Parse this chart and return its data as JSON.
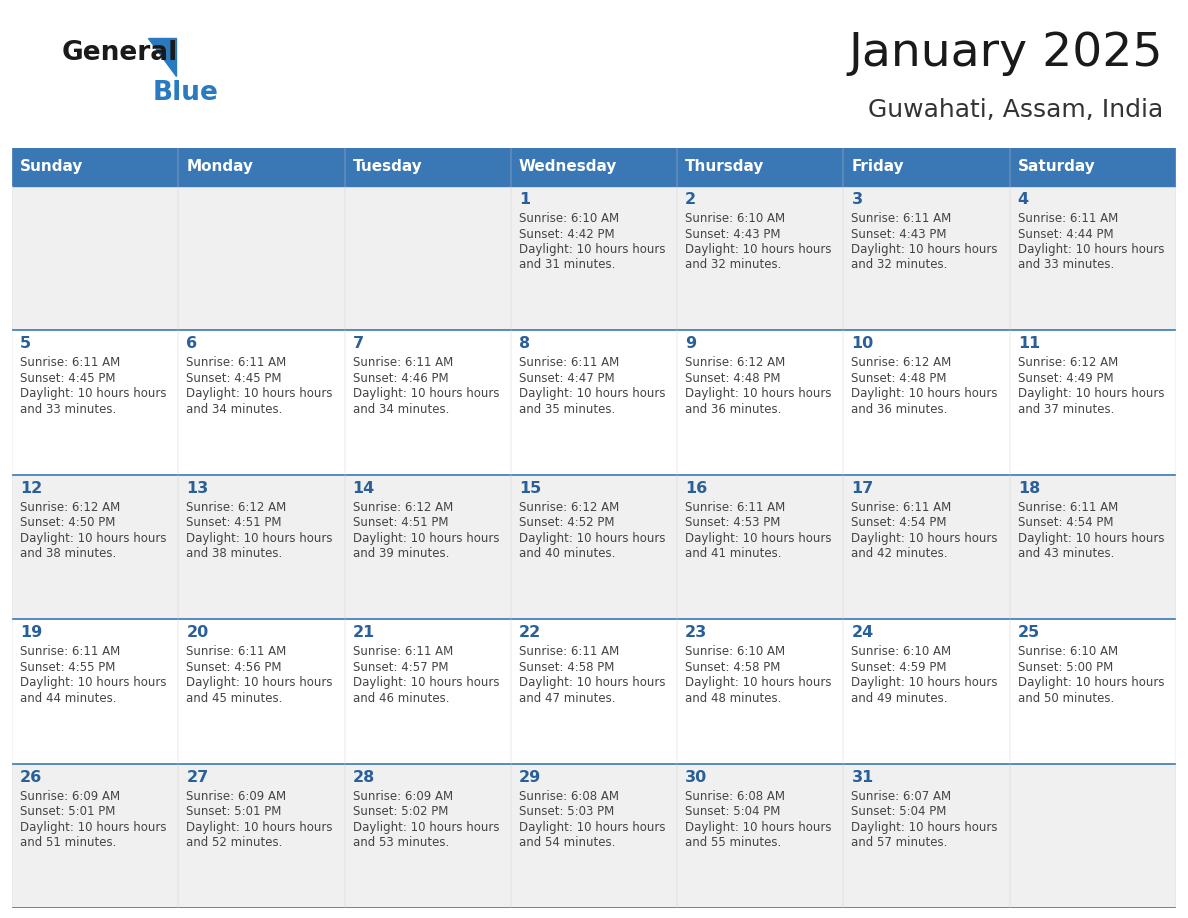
{
  "title": "January 2025",
  "subtitle": "Guwahati, Assam, India",
  "header_bg": "#3a78b5",
  "header_text_color": "#ffffff",
  "cell_bg_odd": "#f0f0f0",
  "cell_bg_even": "#ffffff",
  "day_number_color": "#2a6099",
  "day_text_color": "#444444",
  "border_color": "#3a78b5",
  "divider_color": "#3a78b5",
  "days_of_week": [
    "Sunday",
    "Monday",
    "Tuesday",
    "Wednesday",
    "Thursday",
    "Friday",
    "Saturday"
  ],
  "calendar_data": [
    [
      {
        "day": "",
        "sunrise": "",
        "sunset": "",
        "daylight": ""
      },
      {
        "day": "",
        "sunrise": "",
        "sunset": "",
        "daylight": ""
      },
      {
        "day": "",
        "sunrise": "",
        "sunset": "",
        "daylight": ""
      },
      {
        "day": "1",
        "sunrise": "6:10 AM",
        "sunset": "4:42 PM",
        "daylight": "10 hours and 31 minutes."
      },
      {
        "day": "2",
        "sunrise": "6:10 AM",
        "sunset": "4:43 PM",
        "daylight": "10 hours and 32 minutes."
      },
      {
        "day": "3",
        "sunrise": "6:11 AM",
        "sunset": "4:43 PM",
        "daylight": "10 hours and 32 minutes."
      },
      {
        "day": "4",
        "sunrise": "6:11 AM",
        "sunset": "4:44 PM",
        "daylight": "10 hours and 33 minutes."
      }
    ],
    [
      {
        "day": "5",
        "sunrise": "6:11 AM",
        "sunset": "4:45 PM",
        "daylight": "10 hours and 33 minutes."
      },
      {
        "day": "6",
        "sunrise": "6:11 AM",
        "sunset": "4:45 PM",
        "daylight": "10 hours and 34 minutes."
      },
      {
        "day": "7",
        "sunrise": "6:11 AM",
        "sunset": "4:46 PM",
        "daylight": "10 hours and 34 minutes."
      },
      {
        "day": "8",
        "sunrise": "6:11 AM",
        "sunset": "4:47 PM",
        "daylight": "10 hours and 35 minutes."
      },
      {
        "day": "9",
        "sunrise": "6:12 AM",
        "sunset": "4:48 PM",
        "daylight": "10 hours and 36 minutes."
      },
      {
        "day": "10",
        "sunrise": "6:12 AM",
        "sunset": "4:48 PM",
        "daylight": "10 hours and 36 minutes."
      },
      {
        "day": "11",
        "sunrise": "6:12 AM",
        "sunset": "4:49 PM",
        "daylight": "10 hours and 37 minutes."
      }
    ],
    [
      {
        "day": "12",
        "sunrise": "6:12 AM",
        "sunset": "4:50 PM",
        "daylight": "10 hours and 38 minutes."
      },
      {
        "day": "13",
        "sunrise": "6:12 AM",
        "sunset": "4:51 PM",
        "daylight": "10 hours and 38 minutes."
      },
      {
        "day": "14",
        "sunrise": "6:12 AM",
        "sunset": "4:51 PM",
        "daylight": "10 hours and 39 minutes."
      },
      {
        "day": "15",
        "sunrise": "6:12 AM",
        "sunset": "4:52 PM",
        "daylight": "10 hours and 40 minutes."
      },
      {
        "day": "16",
        "sunrise": "6:11 AM",
        "sunset": "4:53 PM",
        "daylight": "10 hours and 41 minutes."
      },
      {
        "day": "17",
        "sunrise": "6:11 AM",
        "sunset": "4:54 PM",
        "daylight": "10 hours and 42 minutes."
      },
      {
        "day": "18",
        "sunrise": "6:11 AM",
        "sunset": "4:54 PM",
        "daylight": "10 hours and 43 minutes."
      }
    ],
    [
      {
        "day": "19",
        "sunrise": "6:11 AM",
        "sunset": "4:55 PM",
        "daylight": "10 hours and 44 minutes."
      },
      {
        "day": "20",
        "sunrise": "6:11 AM",
        "sunset": "4:56 PM",
        "daylight": "10 hours and 45 minutes."
      },
      {
        "day": "21",
        "sunrise": "6:11 AM",
        "sunset": "4:57 PM",
        "daylight": "10 hours and 46 minutes."
      },
      {
        "day": "22",
        "sunrise": "6:11 AM",
        "sunset": "4:58 PM",
        "daylight": "10 hours and 47 minutes."
      },
      {
        "day": "23",
        "sunrise": "6:10 AM",
        "sunset": "4:58 PM",
        "daylight": "10 hours and 48 minutes."
      },
      {
        "day": "24",
        "sunrise": "6:10 AM",
        "sunset": "4:59 PM",
        "daylight": "10 hours and 49 minutes."
      },
      {
        "day": "25",
        "sunrise": "6:10 AM",
        "sunset": "5:00 PM",
        "daylight": "10 hours and 50 minutes."
      }
    ],
    [
      {
        "day": "26",
        "sunrise": "6:09 AM",
        "sunset": "5:01 PM",
        "daylight": "10 hours and 51 minutes."
      },
      {
        "day": "27",
        "sunrise": "6:09 AM",
        "sunset": "5:01 PM",
        "daylight": "10 hours and 52 minutes."
      },
      {
        "day": "28",
        "sunrise": "6:09 AM",
        "sunset": "5:02 PM",
        "daylight": "10 hours and 53 minutes."
      },
      {
        "day": "29",
        "sunrise": "6:08 AM",
        "sunset": "5:03 PM",
        "daylight": "10 hours and 54 minutes."
      },
      {
        "day": "30",
        "sunrise": "6:08 AM",
        "sunset": "5:04 PM",
        "daylight": "10 hours and 55 minutes."
      },
      {
        "day": "31",
        "sunrise": "6:07 AM",
        "sunset": "5:04 PM",
        "daylight": "10 hours and 57 minutes."
      },
      {
        "day": "",
        "sunrise": "",
        "sunset": "",
        "daylight": ""
      }
    ]
  ]
}
